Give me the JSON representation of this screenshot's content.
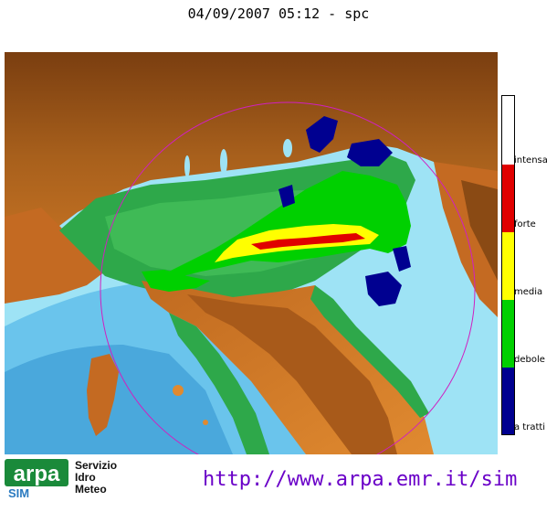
{
  "header": {
    "title": "04/09/2007 05:12 - spc"
  },
  "legend": {
    "labels": [
      "intensa",
      "forte",
      "media",
      "debole",
      "a tratti"
    ],
    "colors": {
      "intensa": "#ffffff",
      "forte": "#e00000",
      "media": "#ffff00",
      "debole": "#00d000",
      "a_tratti": "#000090"
    }
  },
  "branding": {
    "logo_text": "arpa",
    "logo_sub": "SIM",
    "org_line1": "Servizio",
    "org_line2": "Idro",
    "org_line3": "Meteo",
    "url": "http://www.arpa.emr.it/sim"
  },
  "colors": {
    "sea": "#9ee3f5",
    "sea_deep": "#5ab8e6",
    "plain": "#2ea84a",
    "land_low": "#f08a2a",
    "land_high": "#8a4a14",
    "range_ring": "#d020c0"
  }
}
